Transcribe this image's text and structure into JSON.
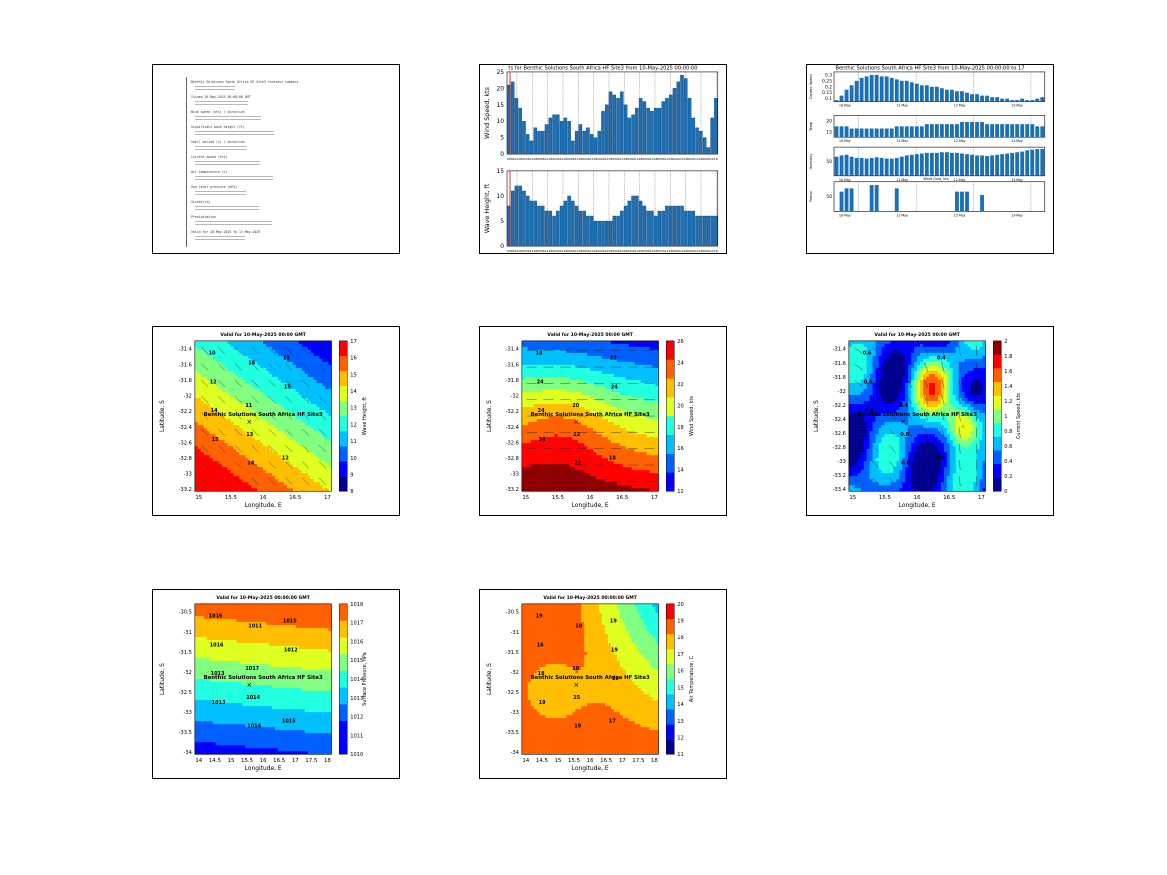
{
  "summary_doc": {
    "lines": [
      "Benthic Solutions South Africa HF Site3 forecast summary",
      "Issued 10-May-2025 00:00:00 GMT",
      "Wind speed (kts) / direction",
      "Significant wave height (ft)",
      "Swell period (s) / direction",
      "Current speed (kts)",
      "Air temperature (C)",
      "Sea level pressure (hPa)",
      "Visibility",
      "Precipitation",
      "Valid for 10-May-2025 to 17-May-2025"
    ]
  },
  "chart_data": [
    {
      "id": "wind-wave-timeseries",
      "type": "bar",
      "title": "ts for Benthic Solutions South Africa HF Site3 from 10-May-2025 00:00:00",
      "panels": [
        {
          "ylabel": "Wind Speed, kts",
          "ylim": [
            0,
            25
          ],
          "yticks": [
            0,
            5,
            10,
            15,
            20,
            25
          ],
          "values": [
            21,
            22,
            17,
            14,
            10,
            6,
            4,
            8,
            7,
            7,
            9,
            11,
            12,
            12,
            10,
            11,
            10,
            4,
            7,
            9,
            7,
            8,
            6,
            5,
            7,
            13,
            15,
            19,
            18,
            17,
            19,
            15,
            11,
            12,
            14,
            17,
            16,
            14,
            13,
            14,
            14,
            16,
            17,
            18,
            20,
            22,
            24,
            23,
            17,
            11,
            8,
            7,
            5,
            2,
            11,
            17
          ]
        },
        {
          "ylabel": "Wave Height, ft",
          "ylim": [
            0,
            15
          ],
          "yticks": [
            0,
            5,
            10,
            15
          ],
          "values": [
            8,
            11,
            12,
            12,
            11,
            10,
            9,
            9,
            8,
            8,
            7,
            7,
            6,
            7,
            8,
            9,
            10,
            9,
            8,
            7,
            7,
            6,
            6,
            5,
            5,
            5,
            5,
            5,
            6,
            6,
            7,
            8,
            9,
            10,
            10,
            9,
            8,
            7,
            7,
            6,
            7,
            7,
            8,
            8,
            8,
            8,
            8,
            7,
            7,
            7,
            6,
            6,
            6,
            6,
            6,
            6
          ]
        }
      ]
    },
    {
      "id": "multi-parameter-timeseries",
      "type": "bar",
      "title": "Benthic Solutions South Africa HF Site3 from 10-May-2025 00:00:00 to 17",
      "panels": [
        {
          "ylabel": "Current Speed",
          "yticks": [
            "0.1",
            "0.15",
            "0.2",
            "0.25",
            "0.3"
          ],
          "values": [
            0.11,
            0.14,
            0.18,
            0.21,
            0.24,
            0.26,
            0.27,
            0.28,
            0.28,
            0.27,
            0.27,
            0.26,
            0.25,
            0.24,
            0.24,
            0.23,
            0.22,
            0.21,
            0.21,
            0.2,
            0.2,
            0.19,
            0.18,
            0.18,
            0.17,
            0.17,
            0.16,
            0.15,
            0.15,
            0.14,
            0.14,
            0.13,
            0.13,
            0.12,
            0.12,
            0.11,
            0.11,
            0.12,
            0.11,
            0.11,
            0.12,
            0.13
          ]
        },
        {
          "ylabel": "Temp",
          "yticks": [
            "15",
            "20"
          ],
          "values": [
            17,
            17,
            17,
            16,
            16,
            16,
            16,
            16,
            16,
            16,
            16,
            16,
            17,
            17,
            17,
            17,
            17,
            17,
            18,
            18,
            18,
            18,
            18,
            18,
            18,
            19,
            19,
            19,
            19,
            19,
            18,
            18,
            18,
            18,
            18,
            18,
            18,
            18,
            18,
            18,
            17,
            17
          ]
        },
        {
          "ylabel": "Humidity",
          "yticks": [
            "50"
          ],
          "values": [
            60,
            62,
            63,
            60,
            58,
            58,
            57,
            58,
            59,
            58,
            57,
            57,
            58,
            60,
            62,
            63,
            64,
            65,
            66,
            66,
            66,
            67,
            67,
            66,
            66,
            65,
            64,
            63,
            62,
            62,
            61,
            62,
            63,
            64,
            65,
            66,
            67,
            68,
            70,
            71,
            72,
            72
          ]
        },
        {
          "ylabel": "Precip",
          "yticks": [
            "50"
          ],
          "values": [
            0,
            60,
            70,
            70,
            0,
            0,
            0,
            80,
            80,
            0,
            0,
            0,
            70,
            0,
            0,
            0,
            0,
            0,
            0,
            0,
            0,
            0,
            0,
            0,
            60,
            60,
            60,
            0,
            0,
            50,
            0,
            0,
            0,
            0,
            0,
            0,
            0,
            0,
            0,
            0,
            0,
            0
          ]
        }
      ],
      "annotation": "Wind Gust, kts"
    },
    {
      "id": "wave-height-map",
      "type": "heatmap",
      "title": "Valid for 10-May-2025 00:00 GMT",
      "xlabel": "Longitude, E",
      "ylabel": "Latitude, S",
      "xticks": [
        "15",
        "15.5",
        "16",
        "16.5",
        "17"
      ],
      "yticks": [
        "-31.4",
        "-31.6",
        "-31.8",
        "-32",
        "-32.2",
        "-32.4",
        "-32.6",
        "-32.8",
        "-33",
        "-33.2"
      ],
      "site_label": "Benthic Solutions South Africa HF Site3",
      "colorbar_label": "Wave Height, ft",
      "colorbar_ticks": [
        "8",
        "9",
        "10",
        "11",
        "12",
        "13",
        "14",
        "15",
        "16",
        "17"
      ],
      "contour_labels": [
        "10",
        "11",
        "12",
        "12",
        "13",
        "13",
        "14",
        "14",
        "15",
        "15",
        "16"
      ]
    },
    {
      "id": "wind-speed-map",
      "type": "heatmap",
      "title": "Valid for 10-May-2025 00:00 GMT",
      "xlabel": "Longitude, E",
      "ylabel": "Latitude, S",
      "xticks": [
        "15",
        "15.5",
        "16",
        "16.5",
        "17"
      ],
      "yticks": [
        "-31.4",
        "-31.6",
        "-31.8",
        "-32",
        "-32.2",
        "-32.4",
        "-32.6",
        "-32.8",
        "-33",
        "-33.2"
      ],
      "site_label": "Benthic Solutions South Africa HF Site3",
      "colorbar_label": "Wind Speed, kts",
      "colorbar_ticks": [
        "12",
        "14",
        "16",
        "18",
        "20",
        "22",
        "24",
        "26"
      ],
      "contour_labels": [
        "18",
        "20",
        "18",
        "24",
        "22",
        "22",
        "24",
        "22",
        "24",
        "24"
      ]
    },
    {
      "id": "current-speed-map",
      "type": "heatmap",
      "title": "Valid for 10-May-2025 00:00 GMT",
      "xlabel": "Longitude, E",
      "ylabel": "Latitude, S",
      "xticks": [
        "15",
        "15.5",
        "16",
        "16.5",
        "17"
      ],
      "yticks": [
        "-31.4",
        "-31.6",
        "-31.8",
        "-32",
        "-32.2",
        "-32.4",
        "-32.6",
        "-32.8",
        "-33",
        "-33.2",
        "-33.4"
      ],
      "site_label": "Benthic Solutions South Africa HF Site3",
      "colorbar_label": "Current Speed, kts",
      "colorbar_ticks": [
        "0",
        "0.2",
        "0.4",
        "0.6",
        "0.8",
        "1",
        "1.2",
        "1.4",
        "1.6",
        "1.8",
        "2"
      ],
      "contour_labels": [
        "0.6",
        "0.4",
        "0.8",
        "0.6",
        "0.8",
        "0.4",
        "0.6",
        "0.8"
      ]
    },
    {
      "id": "pressure-map",
      "type": "heatmap",
      "title": "Valid for 10-May-2025 00:00:00 GMT",
      "xlabel": "Longitude, E",
      "ylabel": "Latitude, S",
      "xticks": [
        "14",
        "14.5",
        "15",
        "15.5",
        "16",
        "16.5",
        "17",
        "17.5",
        "18"
      ],
      "yticks": [
        "-30.5",
        "-31",
        "-31.5",
        "-32",
        "-32.5",
        "-33",
        "-33.5",
        "-34"
      ],
      "site_label": "Benthic Solutions South Africa HF Site3",
      "colorbar_label": "Surface Pressure, hPa",
      "colorbar_ticks": [
        "1010",
        "1011",
        "1012",
        "1013",
        "1014",
        "1015",
        "1016",
        "1017",
        "1018"
      ],
      "contour_labels": [
        "1016",
        "1017",
        "1015",
        "1016",
        "1014",
        "1015",
        "1013",
        "1014",
        "1012",
        "1013",
        "1011"
      ]
    },
    {
      "id": "air-temp-map",
      "type": "heatmap",
      "title": "Valid for 10-May-2025 00:00:00 GMT",
      "xlabel": "Longitude, E",
      "ylabel": "Latitude, S",
      "xticks": [
        "14",
        "14.5",
        "15",
        "15.5",
        "16",
        "16.5",
        "17",
        "17.5",
        "18"
      ],
      "yticks": [
        "-30.5",
        "-31",
        "-31.5",
        "-32",
        "-32.5",
        "-33",
        "-33.5",
        "-34"
      ],
      "site_label": "Benthic Solutions South Africa HF Site3",
      "colorbar_label": "Air Temperature, C",
      "colorbar_ticks": [
        "11",
        "12",
        "13",
        "14",
        "15",
        "16",
        "17",
        "18",
        "19",
        "20"
      ],
      "contour_labels": [
        "19",
        "18",
        "17",
        "16",
        "15",
        "19",
        "18",
        "19",
        "19",
        "19",
        "18",
        "19"
      ]
    }
  ]
}
